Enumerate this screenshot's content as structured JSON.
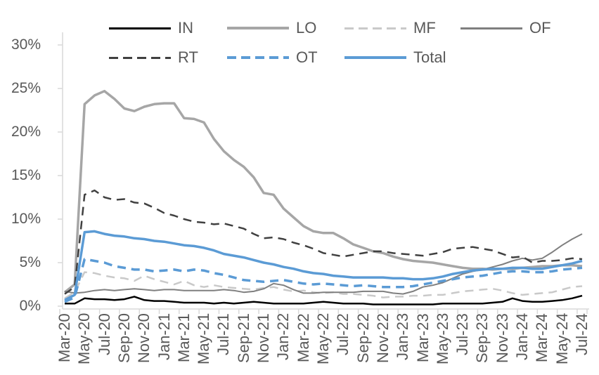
{
  "axis": {
    "text_color": "#595959",
    "line_color": "#D9D9D9"
  },
  "chart_data": {
    "type": "line",
    "title": "",
    "xlabel": "",
    "ylabel": "",
    "ylim": [
      0,
      30
    ],
    "grid": false,
    "legend_position": "top",
    "y_tick_labels": [
      "0%",
      "5%",
      "10%",
      "15%",
      "20%",
      "25%",
      "30%"
    ],
    "x_tick_labels": [
      "Mar-20",
      "May-20",
      "Jul-20",
      "Sep-20",
      "Nov-20",
      "Jan-21",
      "Mar-21",
      "May-21",
      "Jul-21",
      "Sep-21",
      "Nov-21",
      "Jan-22",
      "Mar-22",
      "May-22",
      "Jul-22",
      "Sep-22",
      "Nov-22",
      "Jan-23",
      "Mar-23",
      "May-23",
      "Jul-23",
      "Sep-23",
      "Nov-23",
      "Jan-24",
      "Mar-24",
      "May-24",
      "Jul-24"
    ],
    "x": [
      "Mar-20",
      "Apr-20",
      "May-20",
      "Jun-20",
      "Jul-20",
      "Aug-20",
      "Sep-20",
      "Oct-20",
      "Nov-20",
      "Dec-20",
      "Jan-21",
      "Feb-21",
      "Mar-21",
      "Apr-21",
      "May-21",
      "Jun-21",
      "Jul-21",
      "Aug-21",
      "Sep-21",
      "Oct-21",
      "Nov-21",
      "Dec-21",
      "Jan-22",
      "Feb-22",
      "Mar-22",
      "Apr-22",
      "May-22",
      "Jun-22",
      "Jul-22",
      "Aug-22",
      "Sep-22",
      "Oct-22",
      "Nov-22",
      "Dec-22",
      "Jan-23",
      "Feb-23",
      "Mar-23",
      "Apr-23",
      "May-23",
      "Jun-23",
      "Jul-23",
      "Aug-23",
      "Sep-23",
      "Oct-23",
      "Nov-23",
      "Dec-23",
      "Jan-24",
      "Feb-24",
      "Mar-24",
      "Apr-24",
      "May-24",
      "Jun-24",
      "Jul-24"
    ],
    "unit": "%",
    "series": [
      {
        "name": "IN",
        "color": "#000000",
        "style": "solid",
        "width": 2.5,
        "values": [
          0.3,
          0.3,
          0.9,
          0.8,
          0.8,
          0.7,
          0.8,
          1.1,
          0.7,
          0.6,
          0.6,
          0.5,
          0.4,
          0.4,
          0.4,
          0.3,
          0.4,
          0.3,
          0.4,
          0.5,
          0.4,
          0.3,
          0.3,
          0.3,
          0.3,
          0.4,
          0.5,
          0.4,
          0.3,
          0.3,
          0.3,
          0.2,
          0.2,
          0.2,
          0.2,
          0.2,
          0.2,
          0.2,
          0.3,
          0.3,
          0.3,
          0.3,
          0.3,
          0.4,
          0.5,
          0.9,
          0.6,
          0.5,
          0.5,
          0.6,
          0.7,
          0.9,
          1.2
        ]
      },
      {
        "name": "LO",
        "color": "#A6A6A6",
        "style": "solid",
        "width": 3.5,
        "values": [
          1.6,
          2.5,
          23.2,
          24.2,
          24.7,
          23.8,
          22.7,
          22.4,
          22.9,
          23.2,
          23.3,
          23.3,
          21.6,
          21.5,
          21.1,
          19.2,
          17.8,
          16.8,
          16.0,
          14.8,
          13.0,
          12.8,
          11.2,
          10.2,
          9.2,
          8.6,
          8.4,
          8.4,
          7.8,
          7.1,
          6.7,
          6.3,
          6.1,
          5.7,
          5.4,
          5.2,
          5.1,
          5.0,
          4.8,
          4.6,
          4.4,
          4.3,
          4.3,
          4.2,
          4.3,
          4.3,
          4.4,
          4.5,
          4.6,
          4.6,
          4.7,
          4.7,
          4.6
        ]
      },
      {
        "name": "MF",
        "color": "#C9C9C9",
        "style": "dashed",
        "width": 2.5,
        "values": [
          0.9,
          1.6,
          3.9,
          3.8,
          3.5,
          3.3,
          3.2,
          2.9,
          3.5,
          3.1,
          2.8,
          2.5,
          2.9,
          2.4,
          2.2,
          2.4,
          2.2,
          2.1,
          2.0,
          1.9,
          2.1,
          2.2,
          1.9,
          1.7,
          1.8,
          1.6,
          1.5,
          1.6,
          1.4,
          1.4,
          1.3,
          1.2,
          1.0,
          1.1,
          1.1,
          1.2,
          1.2,
          1.3,
          1.3,
          1.5,
          1.7,
          1.8,
          1.9,
          2.0,
          1.8,
          1.5,
          1.3,
          1.4,
          1.5,
          1.6,
          1.9,
          2.2,
          2.3
        ]
      },
      {
        "name": "OF",
        "color": "#7F7F7F",
        "style": "solid",
        "width": 2,
        "values": [
          1.7,
          1.5,
          1.6,
          1.8,
          1.9,
          1.8,
          1.9,
          2.0,
          1.9,
          1.8,
          1.9,
          1.9,
          1.8,
          1.8,
          1.8,
          1.8,
          1.9,
          1.8,
          1.6,
          1.7,
          2.0,
          2.6,
          2.4,
          1.9,
          1.5,
          1.5,
          1.6,
          1.6,
          1.6,
          1.6,
          1.7,
          1.7,
          1.7,
          1.5,
          1.4,
          1.7,
          2.2,
          2.4,
          2.7,
          3.2,
          3.7,
          4.0,
          4.2,
          4.5,
          4.8,
          5.2,
          5.5,
          5.3,
          5.5,
          6.2,
          7.0,
          7.7,
          8.3
        ]
      },
      {
        "name": "RT",
        "color": "#404040",
        "style": "dashed",
        "width": 2.5,
        "values": [
          1.4,
          2.2,
          12.8,
          13.3,
          12.5,
          12.2,
          12.3,
          11.9,
          11.8,
          11.3,
          10.7,
          10.4,
          10.0,
          9.7,
          9.6,
          9.4,
          9.5,
          9.2,
          8.9,
          8.3,
          7.8,
          7.9,
          7.7,
          7.3,
          7.0,
          6.6,
          6.1,
          5.9,
          5.7,
          5.9,
          6.1,
          6.3,
          6.3,
          6.1,
          6.0,
          5.9,
          5.8,
          6.0,
          6.2,
          6.6,
          6.7,
          6.8,
          6.6,
          6.4,
          6.0,
          5.6,
          5.7,
          5.0,
          5.2,
          5.2,
          5.3,
          5.5,
          5.4
        ]
      },
      {
        "name": "OT",
        "color": "#5B9BD5",
        "style": "dashed",
        "width": 3.5,
        "values": [
          0.5,
          1.0,
          5.4,
          5.2,
          5.0,
          4.6,
          4.4,
          4.2,
          4.2,
          4.0,
          4.1,
          4.2,
          4.0,
          4.2,
          4.1,
          3.8,
          3.6,
          3.3,
          3.0,
          2.9,
          2.8,
          2.9,
          3.0,
          2.8,
          2.6,
          2.5,
          2.6,
          2.5,
          2.4,
          2.3,
          2.4,
          2.3,
          2.2,
          2.2,
          2.2,
          2.3,
          2.5,
          2.7,
          2.9,
          3.1,
          3.3,
          3.4,
          3.5,
          3.7,
          3.9,
          4.0,
          4.0,
          3.9,
          3.9,
          4.0,
          4.2,
          4.3,
          4.4
        ]
      },
      {
        "name": "Total",
        "color": "#5B9BD5",
        "style": "solid",
        "width": 3.5,
        "values": [
          0.7,
          1.3,
          8.5,
          8.6,
          8.3,
          8.1,
          8.0,
          7.8,
          7.7,
          7.5,
          7.4,
          7.2,
          7.0,
          6.9,
          6.7,
          6.4,
          6.0,
          5.8,
          5.6,
          5.3,
          5.0,
          4.8,
          4.5,
          4.3,
          4.0,
          3.8,
          3.7,
          3.5,
          3.4,
          3.3,
          3.3,
          3.3,
          3.3,
          3.2,
          3.2,
          3.1,
          3.1,
          3.2,
          3.4,
          3.7,
          3.9,
          4.1,
          4.2,
          4.3,
          4.3,
          4.4,
          4.4,
          4.3,
          4.3,
          4.5,
          4.7,
          4.9,
          5.2
        ]
      }
    ]
  }
}
